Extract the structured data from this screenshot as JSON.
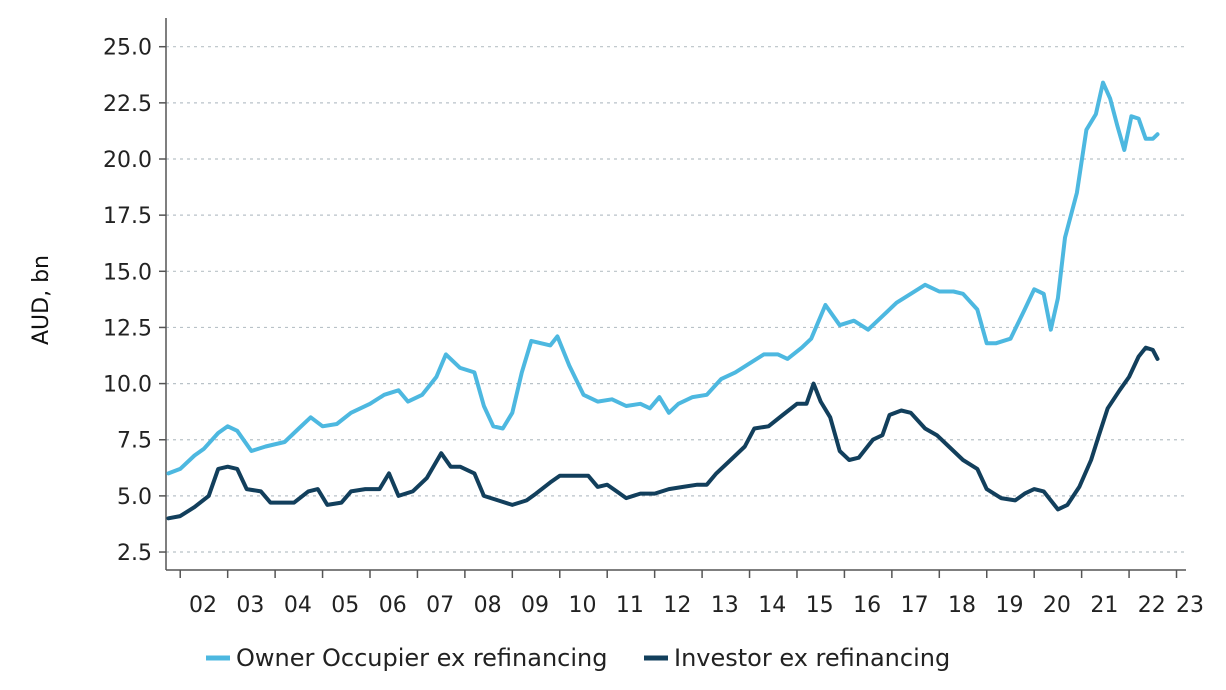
{
  "chart_data": {
    "type": "line",
    "title": "",
    "xlabel": "",
    "ylabel": "AUD, bn",
    "xlim": [
      2001.7,
      2023.2
    ],
    "ylim": [
      1.7,
      26.1
    ],
    "yticks": [
      "2.5",
      "5.0",
      "7.5",
      "10.0",
      "12.5",
      "15.0",
      "17.5",
      "20.0",
      "22.5",
      "25.0"
    ],
    "xticks": [
      "02",
      "03",
      "04",
      "05",
      "06",
      "07",
      "08",
      "09",
      "10",
      "11",
      "12",
      "13",
      "14",
      "15",
      "16",
      "17",
      "18",
      "19",
      "20",
      "21",
      "22",
      "23"
    ],
    "grid": "horizontal dashed",
    "legend": "bottom",
    "series": [
      {
        "name": "Owner Occupier ex refinancing",
        "color": "#4db8e0",
        "points": [
          [
            2001.75,
            6.0
          ],
          [
            2002.0,
            6.2
          ],
          [
            2002.3,
            6.8
          ],
          [
            2002.5,
            7.1
          ],
          [
            2002.8,
            7.8
          ],
          [
            2003.0,
            8.1
          ],
          [
            2003.2,
            7.9
          ],
          [
            2003.5,
            7.0
          ],
          [
            2003.8,
            7.2
          ],
          [
            2004.2,
            7.4
          ],
          [
            2004.5,
            8.0
          ],
          [
            2004.75,
            8.5
          ],
          [
            2005.0,
            8.1
          ],
          [
            2005.3,
            8.2
          ],
          [
            2005.6,
            8.7
          ],
          [
            2006.0,
            9.1
          ],
          [
            2006.3,
            9.5
          ],
          [
            2006.6,
            9.7
          ],
          [
            2006.8,
            9.2
          ],
          [
            2007.1,
            9.5
          ],
          [
            2007.4,
            10.3
          ],
          [
            2007.6,
            11.3
          ],
          [
            2007.9,
            10.7
          ],
          [
            2008.2,
            10.5
          ],
          [
            2008.4,
            9.0
          ],
          [
            2008.6,
            8.1
          ],
          [
            2008.8,
            8.0
          ],
          [
            2009.0,
            8.7
          ],
          [
            2009.2,
            10.5
          ],
          [
            2009.4,
            11.9
          ],
          [
            2009.6,
            11.8
          ],
          [
            2009.8,
            11.7
          ],
          [
            2009.95,
            12.1
          ],
          [
            2010.2,
            10.8
          ],
          [
            2010.5,
            9.5
          ],
          [
            2010.8,
            9.2
          ],
          [
            2011.1,
            9.3
          ],
          [
            2011.4,
            9.0
          ],
          [
            2011.7,
            9.1
          ],
          [
            2011.9,
            8.9
          ],
          [
            2012.1,
            9.4
          ],
          [
            2012.3,
            8.7
          ],
          [
            2012.5,
            9.1
          ],
          [
            2012.8,
            9.4
          ],
          [
            2013.1,
            9.5
          ],
          [
            2013.4,
            10.2
          ],
          [
            2013.7,
            10.5
          ],
          [
            2014.0,
            10.9
          ],
          [
            2014.3,
            11.3
          ],
          [
            2014.6,
            11.3
          ],
          [
            2014.8,
            11.1
          ],
          [
            2015.1,
            11.6
          ],
          [
            2015.3,
            12.0
          ],
          [
            2015.6,
            13.5
          ],
          [
            2015.9,
            12.6
          ],
          [
            2016.2,
            12.8
          ],
          [
            2016.5,
            12.4
          ],
          [
            2016.8,
            13.0
          ],
          [
            2017.1,
            13.6
          ],
          [
            2017.4,
            14.0
          ],
          [
            2017.7,
            14.4
          ],
          [
            2018.0,
            14.1
          ],
          [
            2018.3,
            14.1
          ],
          [
            2018.5,
            14.0
          ],
          [
            2018.8,
            13.3
          ],
          [
            2019.0,
            11.8
          ],
          [
            2019.2,
            11.8
          ],
          [
            2019.5,
            12.0
          ],
          [
            2019.8,
            13.3
          ],
          [
            2020.0,
            14.2
          ],
          [
            2020.2,
            14.0
          ],
          [
            2020.35,
            12.4
          ],
          [
            2020.5,
            13.8
          ],
          [
            2020.65,
            16.5
          ],
          [
            2020.9,
            18.5
          ],
          [
            2021.1,
            21.3
          ],
          [
            2021.3,
            22.0
          ],
          [
            2021.45,
            23.4
          ],
          [
            2021.6,
            22.7
          ],
          [
            2021.75,
            21.5
          ],
          [
            2021.9,
            20.4
          ],
          [
            2022.05,
            21.9
          ],
          [
            2022.2,
            21.8
          ],
          [
            2022.35,
            20.9
          ],
          [
            2022.5,
            20.9
          ],
          [
            2022.6,
            21.1
          ]
        ]
      },
      {
        "name": "Investor ex refinancing",
        "color": "#123f5c",
        "points": [
          [
            2001.75,
            4.0
          ],
          [
            2002.0,
            4.1
          ],
          [
            2002.3,
            4.5
          ],
          [
            2002.6,
            5.0
          ],
          [
            2002.8,
            6.2
          ],
          [
            2003.0,
            6.3
          ],
          [
            2003.2,
            6.2
          ],
          [
            2003.4,
            5.3
          ],
          [
            2003.7,
            5.2
          ],
          [
            2003.9,
            4.7
          ],
          [
            2004.2,
            4.7
          ],
          [
            2004.4,
            4.7
          ],
          [
            2004.7,
            5.2
          ],
          [
            2004.9,
            5.3
          ],
          [
            2005.1,
            4.6
          ],
          [
            2005.4,
            4.7
          ],
          [
            2005.6,
            5.2
          ],
          [
            2005.9,
            5.3
          ],
          [
            2006.2,
            5.3
          ],
          [
            2006.4,
            6.0
          ],
          [
            2006.6,
            5.0
          ],
          [
            2006.9,
            5.2
          ],
          [
            2007.2,
            5.8
          ],
          [
            2007.5,
            6.9
          ],
          [
            2007.7,
            6.3
          ],
          [
            2007.9,
            6.3
          ],
          [
            2008.2,
            6.0
          ],
          [
            2008.4,
            5.0
          ],
          [
            2008.7,
            4.8
          ],
          [
            2009.0,
            4.6
          ],
          [
            2009.3,
            4.8
          ],
          [
            2009.5,
            5.1
          ],
          [
            2009.8,
            5.6
          ],
          [
            2010.0,
            5.9
          ],
          [
            2010.3,
            5.9
          ],
          [
            2010.6,
            5.9
          ],
          [
            2010.8,
            5.4
          ],
          [
            2011.0,
            5.5
          ],
          [
            2011.2,
            5.2
          ],
          [
            2011.4,
            4.9
          ],
          [
            2011.7,
            5.1
          ],
          [
            2012.0,
            5.1
          ],
          [
            2012.3,
            5.3
          ],
          [
            2012.6,
            5.4
          ],
          [
            2012.9,
            5.5
          ],
          [
            2013.1,
            5.5
          ],
          [
            2013.3,
            6.0
          ],
          [
            2013.6,
            6.6
          ],
          [
            2013.9,
            7.2
          ],
          [
            2014.1,
            8.0
          ],
          [
            2014.4,
            8.1
          ],
          [
            2014.7,
            8.6
          ],
          [
            2015.0,
            9.1
          ],
          [
            2015.2,
            9.1
          ],
          [
            2015.35,
            10.0
          ],
          [
            2015.5,
            9.2
          ],
          [
            2015.7,
            8.5
          ],
          [
            2015.9,
            7.0
          ],
          [
            2016.1,
            6.6
          ],
          [
            2016.3,
            6.7
          ],
          [
            2016.6,
            7.5
          ],
          [
            2016.8,
            7.7
          ],
          [
            2016.95,
            8.6
          ],
          [
            2017.2,
            8.8
          ],
          [
            2017.4,
            8.7
          ],
          [
            2017.7,
            8.0
          ],
          [
            2017.95,
            7.7
          ],
          [
            2018.2,
            7.2
          ],
          [
            2018.5,
            6.6
          ],
          [
            2018.8,
            6.2
          ],
          [
            2019.0,
            5.3
          ],
          [
            2019.3,
            4.9
          ],
          [
            2019.6,
            4.8
          ],
          [
            2019.8,
            5.1
          ],
          [
            2020.0,
            5.3
          ],
          [
            2020.2,
            5.2
          ],
          [
            2020.35,
            4.8
          ],
          [
            2020.5,
            4.4
          ],
          [
            2020.7,
            4.6
          ],
          [
            2020.95,
            5.4
          ],
          [
            2021.2,
            6.6
          ],
          [
            2021.35,
            7.6
          ],
          [
            2021.55,
            8.9
          ],
          [
            2021.8,
            9.7
          ],
          [
            2022.0,
            10.3
          ],
          [
            2022.2,
            11.2
          ],
          [
            2022.35,
            11.6
          ],
          [
            2022.5,
            11.5
          ],
          [
            2022.6,
            11.1
          ]
        ]
      }
    ]
  }
}
